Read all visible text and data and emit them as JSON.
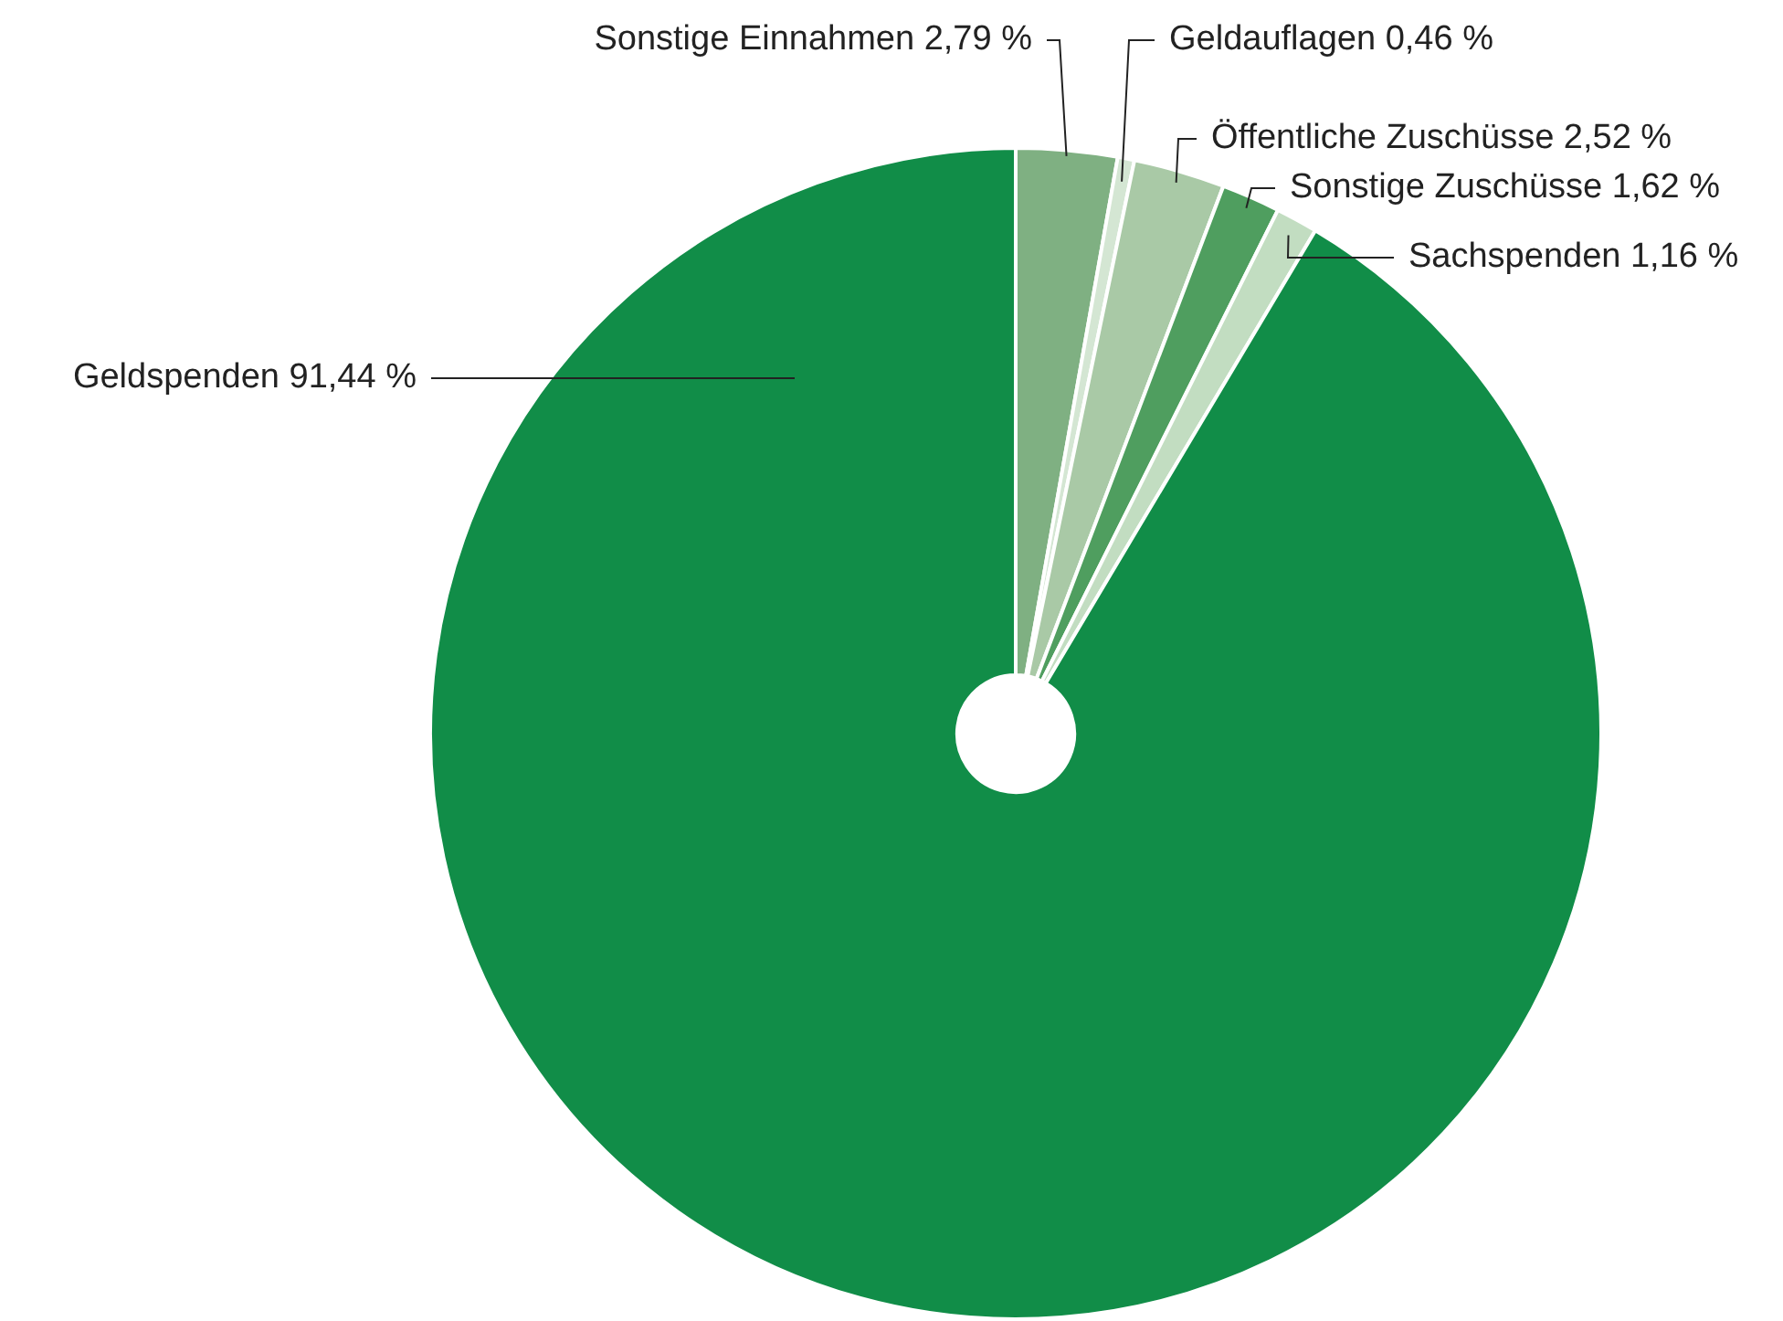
{
  "chart_data": {
    "type": "pie",
    "categories": [
      "Sonstige Einnahmen",
      "Geldauflagen",
      "Öffentliche Zuschüsse",
      "Sonstige Zuschüsse",
      "Sachspenden",
      "Geldspenden"
    ],
    "values": [
      2.79,
      0.46,
      2.52,
      1.62,
      1.16,
      91.44
    ],
    "value_labels": [
      "2,79 %",
      "0,46 %",
      "2,52 %",
      "1,62 %",
      "1,16 %",
      "91,44 %"
    ],
    "colors": [
      "#7fb082",
      "#d4e6d3",
      "#a9c9a6",
      "#4f9e5f",
      "#c2ddc1",
      "#118d48"
    ],
    "legend": false
  }
}
